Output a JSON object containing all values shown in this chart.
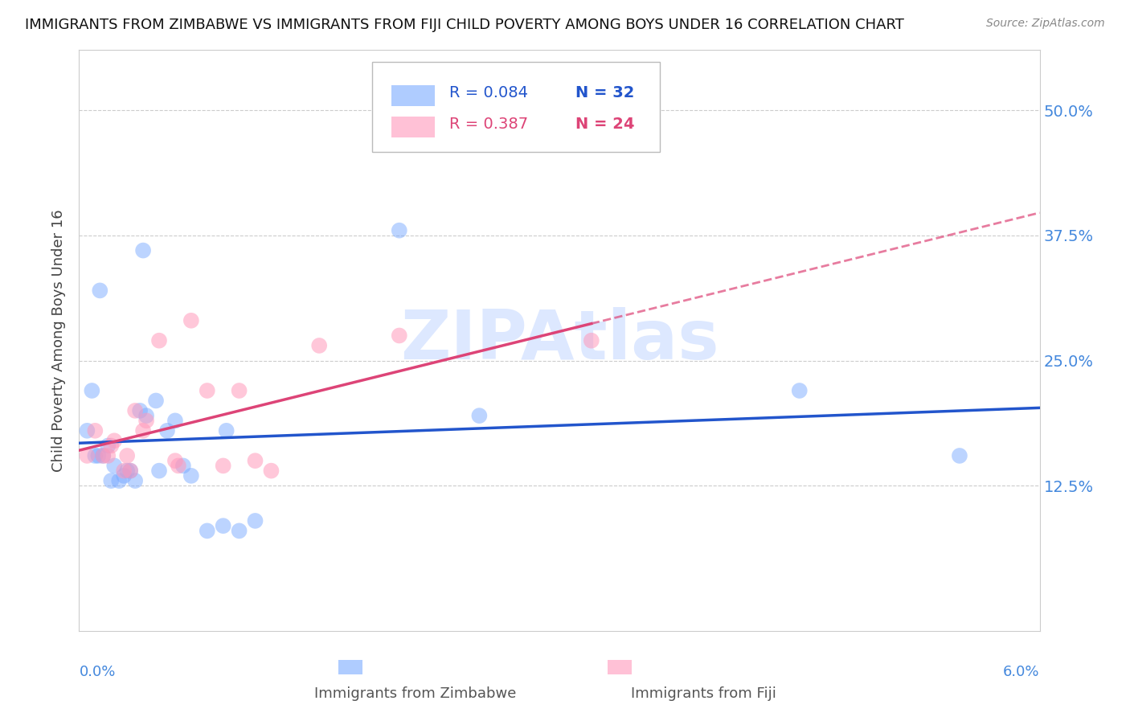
{
  "title": "IMMIGRANTS FROM ZIMBABWE VS IMMIGRANTS FROM FIJI CHILD POVERTY AMONG BOYS UNDER 16 CORRELATION CHART",
  "source": "Source: ZipAtlas.com",
  "ylabel": "Child Poverty Among Boys Under 16",
  "ytick_labels": [
    "12.5%",
    "25.0%",
    "37.5%",
    "50.0%"
  ],
  "ytick_values": [
    12.5,
    25.0,
    37.5,
    50.0
  ],
  "xlim": [
    0.0,
    6.0
  ],
  "ylim": [
    -2.0,
    56.0
  ],
  "legend_r1": "R = 0.084",
  "legend_n1": "N = 32",
  "legend_r2": "R = 0.387",
  "legend_n2": "N = 24",
  "color_zimbabwe": "#7aaaff",
  "color_fiji": "#ff99bb",
  "color_trendline_zimbabwe": "#2255cc",
  "color_trendline_fiji": "#dd4477",
  "watermark": "ZIPAtlas",
  "watermark_color": "#dde8ff",
  "xlabel_bottom_left": "Immigrants from Zimbabwe",
  "xlabel_bottom_right": "Immigrants from Fiji",
  "zimbabwe_x": [
    0.05,
    0.08,
    0.1,
    0.12,
    0.13,
    0.15,
    0.18,
    0.2,
    0.22,
    0.25,
    0.28,
    0.3,
    0.32,
    0.35,
    0.38,
    0.4,
    0.42,
    0.48,
    0.5,
    0.55,
    0.6,
    0.65,
    0.7,
    0.8,
    0.9,
    0.92,
    1.0,
    1.1,
    2.0,
    2.5,
    4.5,
    5.5
  ],
  "zimbabwe_y": [
    18.0,
    22.0,
    15.5,
    15.5,
    32.0,
    15.5,
    16.5,
    13.0,
    14.5,
    13.0,
    13.5,
    14.0,
    14.0,
    13.0,
    20.0,
    36.0,
    19.5,
    21.0,
    14.0,
    18.0,
    19.0,
    14.5,
    13.5,
    8.0,
    8.5,
    18.0,
    8.0,
    9.0,
    38.0,
    19.5,
    22.0,
    15.5
  ],
  "fiji_x": [
    0.05,
    0.1,
    0.15,
    0.18,
    0.2,
    0.22,
    0.28,
    0.3,
    0.32,
    0.35,
    0.4,
    0.42,
    0.5,
    0.6,
    0.62,
    0.7,
    0.8,
    0.9,
    1.0,
    1.1,
    1.2,
    1.5,
    2.0,
    3.2
  ],
  "fiji_y": [
    15.5,
    18.0,
    15.5,
    15.5,
    16.5,
    17.0,
    14.0,
    15.5,
    14.0,
    20.0,
    18.0,
    19.0,
    27.0,
    15.0,
    14.5,
    29.0,
    22.0,
    14.5,
    22.0,
    15.0,
    14.0,
    26.5,
    27.5,
    27.0
  ],
  "marker_size": 200,
  "title_fontsize": 13,
  "source_fontsize": 10,
  "tick_fontsize": 14,
  "ylabel_fontsize": 13
}
